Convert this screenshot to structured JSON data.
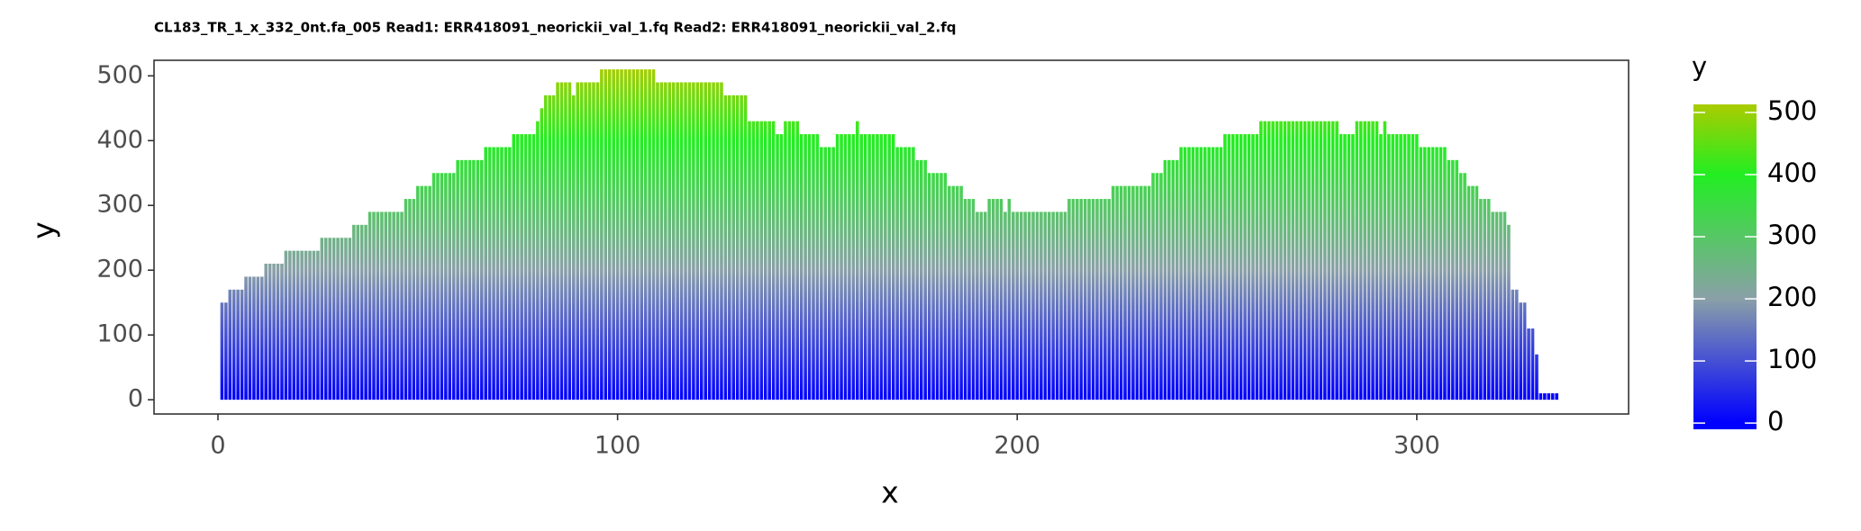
{
  "chart_data": {
    "type": "bar",
    "title": "CL183_TR_1_x_332_0nt.fa_005 Read1: ERR418091_neorickii_val_1.fq Read2: ERR418091_neorickii_val_2.fq",
    "x_label": "x",
    "y_label": "y",
    "legend_title": "y",
    "xlim": [
      -16,
      353
    ],
    "ylim": [
      -22,
      524
    ],
    "xticks": [
      0,
      100,
      200,
      300
    ],
    "yticks": [
      0,
      100,
      200,
      300,
      400,
      500
    ],
    "colorlim": [
      -10,
      513
    ],
    "legend_ticks": [
      0,
      100,
      200,
      300,
      400,
      500
    ],
    "colorscale": [
      {
        "value": 0,
        "color": "#0000ff"
      },
      {
        "value": 200,
        "color": "#8aa0a8"
      },
      {
        "value": 400,
        "color": "#22ee22"
      },
      {
        "value": 513,
        "color": "#aacc00"
      }
    ],
    "grid": false,
    "x": [
      1,
      2,
      3,
      4,
      5,
      6,
      7,
      8,
      9,
      10,
      11,
      12,
      13,
      14,
      15,
      16,
      17,
      18,
      19,
      20,
      21,
      22,
      23,
      24,
      25,
      26,
      27,
      28,
      29,
      30,
      31,
      32,
      33,
      34,
      35,
      36,
      37,
      38,
      39,
      40,
      41,
      42,
      43,
      44,
      45,
      46,
      47,
      48,
      49,
      50,
      51,
      52,
      53,
      54,
      55,
      56,
      57,
      58,
      59,
      60,
      61,
      62,
      63,
      64,
      65,
      66,
      67,
      68,
      69,
      70,
      71,
      72,
      73,
      74,
      75,
      76,
      77,
      78,
      79,
      80,
      81,
      82,
      83,
      84,
      85,
      86,
      87,
      88,
      89,
      90,
      91,
      92,
      93,
      94,
      95,
      96,
      97,
      98,
      99,
      100,
      101,
      102,
      103,
      104,
      105,
      106,
      107,
      108,
      109,
      110,
      111,
      112,
      113,
      114,
      115,
      116,
      117,
      118,
      119,
      120,
      121,
      122,
      123,
      124,
      125,
      126,
      127,
      128,
      129,
      130,
      131,
      132,
      133,
      134,
      135,
      136,
      137,
      138,
      139,
      140,
      141,
      142,
      143,
      144,
      145,
      146,
      147,
      148,
      149,
      150,
      151,
      152,
      153,
      154,
      155,
      156,
      157,
      158,
      159,
      160,
      161,
      162,
      163,
      164,
      165,
      166,
      167,
      168,
      169,
      170,
      171,
      172,
      173,
      174,
      175,
      176,
      177,
      178,
      179,
      180,
      181,
      182,
      183,
      184,
      185,
      186,
      187,
      188,
      189,
      190,
      191,
      192,
      193,
      194,
      195,
      196,
      197,
      198,
      199,
      200,
      201,
      202,
      203,
      204,
      205,
      206,
      207,
      208,
      209,
      210,
      211,
      212,
      213,
      214,
      215,
      216,
      217,
      218,
      219,
      220,
      221,
      222,
      223,
      224,
      225,
      226,
      227,
      228,
      229,
      230,
      231,
      232,
      233,
      234,
      235,
      236,
      237,
      238,
      239,
      240,
      241,
      242,
      243,
      244,
      245,
      246,
      247,
      248,
      249,
      250,
      251,
      252,
      253,
      254,
      255,
      256,
      257,
      258,
      259,
      260,
      261,
      262,
      263,
      264,
      265,
      266,
      267,
      268,
      269,
      270,
      271,
      272,
      273,
      274,
      275,
      276,
      277,
      278,
      279,
      280,
      281,
      282,
      283,
      284,
      285,
      286,
      287,
      288,
      289,
      290,
      291,
      292,
      293,
      294,
      295,
      296,
      297,
      298,
      299,
      300,
      301,
      302,
      303,
      304,
      305,
      306,
      307,
      308,
      309,
      310,
      311,
      312,
      313,
      314,
      315,
      316,
      317,
      318,
      319,
      320,
      321,
      322,
      323,
      324,
      325,
      326,
      327,
      328,
      329,
      330,
      331,
      332,
      333,
      334,
      335
    ],
    "values": [
      150,
      150,
      170,
      170,
      170,
      170,
      190,
      190,
      190,
      190,
      190,
      210,
      210,
      210,
      210,
      210,
      230,
      230,
      230,
      230,
      230,
      230,
      230,
      230,
      230,
      250,
      250,
      250,
      250,
      250,
      250,
      250,
      250,
      270,
      270,
      270,
      270,
      290,
      290,
      290,
      290,
      290,
      290,
      290,
      290,
      290,
      310,
      310,
      310,
      330,
      330,
      330,
      330,
      350,
      350,
      350,
      350,
      350,
      350,
      370,
      370,
      370,
      370,
      370,
      370,
      370,
      390,
      390,
      390,
      390,
      390,
      390,
      390,
      410,
      410,
      410,
      410,
      410,
      410,
      430,
      450,
      470,
      470,
      470,
      490,
      490,
      490,
      490,
      470,
      490,
      490,
      490,
      490,
      490,
      490,
      510,
      510,
      510,
      510,
      510,
      510,
      510,
      510,
      510,
      510,
      510,
      510,
      510,
      510,
      490,
      490,
      490,
      490,
      490,
      490,
      490,
      490,
      490,
      490,
      490,
      490,
      490,
      490,
      490,
      490,
      490,
      470,
      470,
      470,
      470,
      470,
      470,
      430,
      430,
      430,
      430,
      430,
      430,
      430,
      410,
      410,
      430,
      430,
      430,
      430,
      410,
      410,
      410,
      410,
      410,
      390,
      390,
      390,
      390,
      410,
      410,
      410,
      410,
      410,
      430,
      410,
      410,
      410,
      410,
      410,
      410,
      410,
      410,
      410,
      390,
      390,
      390,
      390,
      390,
      370,
      370,
      370,
      350,
      350,
      350,
      350,
      350,
      330,
      330,
      330,
      330,
      310,
      310,
      310,
      290,
      290,
      290,
      310,
      310,
      310,
      310,
      290,
      310,
      290,
      290,
      290,
      290,
      290,
      290,
      290,
      290,
      290,
      290,
      290,
      290,
      290,
      290,
      310,
      310,
      310,
      310,
      310,
      310,
      310,
      310,
      310,
      310,
      310,
      330,
      330,
      330,
      330,
      330,
      330,
      330,
      330,
      330,
      330,
      350,
      350,
      350,
      370,
      370,
      370,
      370,
      390,
      390,
      390,
      390,
      390,
      390,
      390,
      390,
      390,
      390,
      390,
      410,
      410,
      410,
      410,
      410,
      410,
      410,
      410,
      410,
      430,
      430,
      430,
      430,
      430,
      430,
      430,
      430,
      430,
      430,
      430,
      430,
      430,
      430,
      430,
      430,
      430,
      430,
      430,
      430,
      410,
      410,
      410,
      410,
      430,
      430,
      430,
      430,
      430,
      430,
      410,
      430,
      410,
      410,
      410,
      410,
      410,
      410,
      410,
      410,
      390,
      390,
      390,
      390,
      390,
      390,
      390,
      370,
      370,
      370,
      350,
      350,
      330,
      330,
      330,
      310,
      310,
      310,
      290,
      290,
      290,
      290,
      270,
      170,
      170,
      150,
      150,
      110,
      110,
      70,
      10,
      10,
      10,
      10,
      10
    ]
  }
}
